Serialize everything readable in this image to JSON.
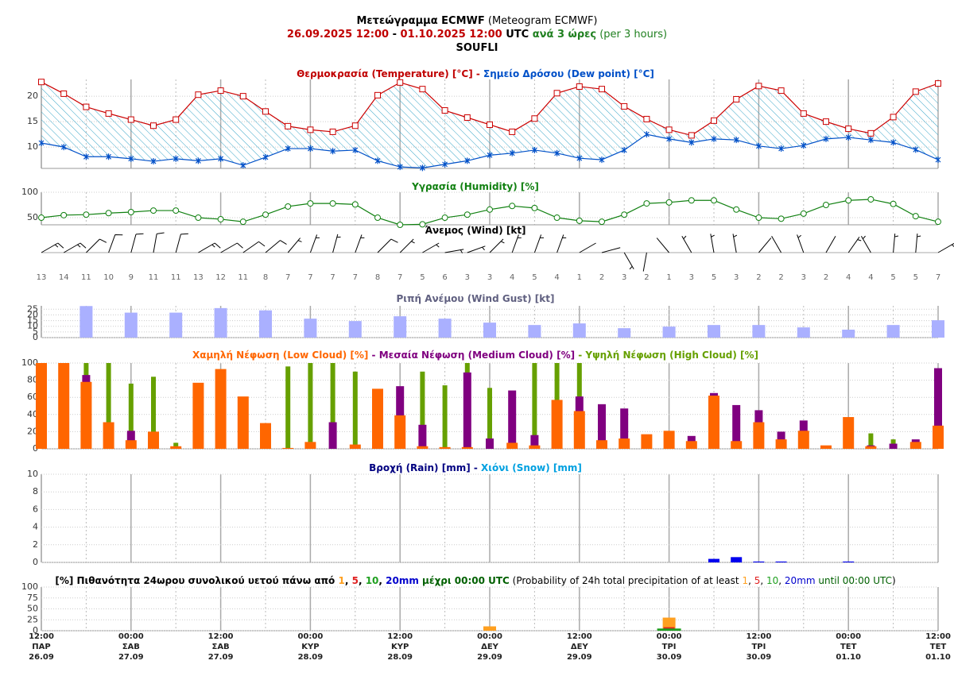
{
  "header": {
    "lines": [
      [
        {
          "text": "Μετεώγραμμα ECMWF",
          "color": "#000",
          "bold": true
        },
        {
          "text": " (Meteogram ECMWF)",
          "color": "#000",
          "bold": false
        }
      ],
      [
        {
          "text": "26.09.2025 12:00",
          "color": "#c00000",
          "bold": true
        },
        {
          "text": " - ",
          "color": "#000",
          "bold": true
        },
        {
          "text": "01.10.2025 12:00",
          "color": "#c00000",
          "bold": true
        },
        {
          "text": " UTC ",
          "color": "#000",
          "bold": true
        },
        {
          "text": "ανά 3 ώρες",
          "color": "#208020",
          "bold": true
        },
        {
          "text": " (per 3 hours)",
          "color": "#208020",
          "bold": false
        }
      ],
      [
        {
          "text": "SOUFLI",
          "color": "#000",
          "bold": true
        }
      ]
    ]
  },
  "time_axis": {
    "ticks": [
      {
        "time": "12:00",
        "day": "ΠΑΡ",
        "date": "26.09"
      },
      {
        "time": "00:00",
        "day": "ΣΑΒ",
        "date": "27.09"
      },
      {
        "time": "12:00",
        "day": "ΣΑΒ",
        "date": "27.09"
      },
      {
        "time": "00:00",
        "day": "ΚΥΡ",
        "date": "28.09"
      },
      {
        "time": "12:00",
        "day": "ΚΥΡ",
        "date": "28.09"
      },
      {
        "time": "00:00",
        "day": "ΔΕΥ",
        "date": "29.09"
      },
      {
        "time": "12:00",
        "day": "ΔΕΥ",
        "date": "29.09"
      },
      {
        "time": "00:00",
        "day": "ΤΡΙ",
        "date": "30.09"
      },
      {
        "time": "12:00",
        "day": "ΤΡΙ",
        "date": "30.09"
      },
      {
        "time": "00:00",
        "day": "ΤΕΤ",
        "date": "01.10"
      },
      {
        "time": "12:00",
        "day": "ΤΕΤ",
        "date": "01.10"
      }
    ]
  },
  "chart_data": [
    {
      "type": "line",
      "title_parts": [
        {
          "text": "Θερμοκρασία (Temperature) [°C]",
          "color": "#c00000",
          "bold": true
        },
        {
          "text": " - ",
          "color": "#c00000",
          "bold": true
        },
        {
          "text": "Σημείο Δρόσου (Dew point) [°C]",
          "color": "#0050c8",
          "bold": true
        }
      ],
      "ylim": [
        5.8,
        23.3
      ],
      "yticks": [
        10,
        15,
        20
      ],
      "fill_between": true,
      "hatch_color": "#3aa6c8",
      "series": [
        {
          "color": "#cc0000",
          "marker": "square",
          "values": [
            22.8,
            20.5,
            17.9,
            16.6,
            15.4,
            14.2,
            15.4,
            20.3,
            21.1,
            20.0,
            17.0,
            14.1,
            13.4,
            13.0,
            14.2,
            20.2,
            22.7,
            21.4,
            17.2,
            15.8,
            14.4,
            13.0,
            15.6,
            20.6,
            21.9,
            21.4,
            18.0,
            15.5,
            13.4,
            12.3,
            15.2,
            19.4,
            22.0,
            21.1,
            16.6,
            15.0,
            13.6,
            12.7,
            15.9,
            20.9,
            22.5
          ]
        },
        {
          "color": "#0050c8",
          "marker": "star",
          "values": [
            10.8,
            10,
            8.1,
            8.1,
            7.7,
            7.2,
            7.7,
            7.3,
            7.7,
            6.4,
            8,
            9.7,
            9.7,
            9.2,
            9.4,
            7.3,
            6.1,
            5.9,
            6.6,
            7.3,
            8.4,
            8.8,
            9.4,
            8.8,
            7.8,
            7.5,
            9.4,
            12.5,
            11.6,
            10.9,
            11.6,
            11.4,
            10.2,
            9.7,
            10.3,
            11.6,
            11.9,
            11.4,
            10.9,
            9.5,
            7.5
          ]
        }
      ]
    },
    {
      "type": "line",
      "title_parts": [
        {
          "text": "Υγρασία (Humidity) [%]",
          "color": "#108010",
          "bold": true
        }
      ],
      "ylim": [
        36,
        100
      ],
      "yticks": [
        50,
        100
      ],
      "series": [
        {
          "color": "#108010",
          "marker": "circle",
          "values": [
            50,
            55,
            56,
            59,
            61,
            64,
            64,
            50,
            47,
            42,
            56,
            72,
            78,
            78,
            76,
            50,
            36,
            37,
            50,
            56,
            66,
            73,
            69,
            50,
            44,
            42,
            56,
            78,
            80,
            84,
            84,
            66,
            50,
            48,
            58,
            75,
            84,
            86,
            77,
            53,
            42
          ]
        }
      ]
    },
    {
      "type": "wind_barb",
      "title_parts": [
        {
          "text": "Άνεμος (Wind) [kt]",
          "color": "#000",
          "bold": true
        }
      ],
      "color": "#000",
      "speeds": [
        13,
        14,
        11,
        10,
        9,
        11,
        11,
        13,
        12,
        11,
        8,
        7,
        7,
        7,
        7,
        8,
        7,
        5,
        6,
        3,
        3,
        4,
        5,
        4,
        1,
        2,
        3,
        2,
        1,
        3,
        5,
        3,
        2,
        2,
        3,
        2,
        4,
        4,
        5,
        5,
        7
      ],
      "directions": [
        60,
        60,
        45,
        20,
        15,
        10,
        15,
        60,
        60,
        55,
        50,
        40,
        20,
        15,
        20,
        45,
        45,
        60,
        80,
        70,
        45,
        20,
        20,
        20,
        60,
        75,
        150,
        190,
        320,
        330,
        350,
        350,
        40,
        330,
        340,
        30,
        35,
        330,
        5,
        5,
        60
      ]
    },
    {
      "type": "bar",
      "title_parts": [
        {
          "text": "Ριπή Ανέμου (Wind Gust) [kt]",
          "color": "#606080",
          "bold": true
        }
      ],
      "ylim": [
        0,
        28
      ],
      "yticks": [
        0,
        5,
        10,
        15,
        20,
        25
      ],
      "series": [
        {
          "color": "#aab0ff",
          "values": [
            null,
            null,
            27.8,
            null,
            22,
            null,
            22,
            null,
            26,
            null,
            24,
            null,
            16.7,
            null,
            14.6,
            null,
            18.8,
            null,
            16.7,
            null,
            13.2,
            null,
            11.1,
            null,
            12.5,
            null,
            8.3,
            null,
            9.7,
            null,
            11.1,
            null,
            11.1,
            null,
            9,
            null,
            7,
            null,
            11.1,
            null,
            15.3
          ]
        }
      ]
    },
    {
      "type": "bar",
      "title_parts": [
        {
          "text": "Χαμηλή Νέφωση (Low Cloud) [%]",
          "color": "#ff6600",
          "bold": true
        },
        {
          "text": " - ",
          "color": "#800080",
          "bold": true
        },
        {
          "text": "Μεσαία Νέφωση (Medium Cloud) [%]",
          "color": "#800080",
          "bold": true
        },
        {
          "text": " - ",
          "color": "#66a000",
          "bold": true
        },
        {
          "text": "Υψηλή Νέφωση (High Cloud) [%]",
          "color": "#66a000",
          "bold": true
        }
      ],
      "ylim": [
        0,
        100
      ],
      "yticks": [
        0,
        20,
        40,
        60,
        80,
        100
      ],
      "series": [
        {
          "color": "#ff6600",
          "values": [
            100,
            100,
            78,
            31,
            10,
            20,
            3,
            77,
            93,
            61,
            30,
            1,
            8,
            0,
            5,
            70,
            39,
            3,
            2,
            2,
            0,
            7,
            4,
            57,
            44,
            10,
            12,
            17,
            21,
            9,
            62,
            9,
            31,
            11,
            21,
            4,
            37,
            3,
            0,
            8,
            27
          ]
        },
        {
          "color": "#800080",
          "values": [
            0,
            0,
            86,
            0,
            21,
            0,
            0,
            0,
            0,
            0,
            0,
            0,
            0,
            31,
            0,
            0,
            73,
            28,
            0,
            89,
            12,
            68,
            16,
            0,
            61,
            52,
            47,
            0,
            0,
            15,
            65,
            51,
            45,
            20,
            33,
            0,
            0,
            4,
            6,
            11,
            94
          ]
        },
        {
          "color": "#66a000",
          "values": [
            0,
            0,
            100,
            100,
            76,
            84,
            7,
            0,
            0,
            0,
            0,
            96,
            100,
            100,
            90,
            0,
            0,
            90,
            74,
            100,
            71,
            0,
            100,
            100,
            100,
            0,
            0,
            0,
            0,
            0,
            0,
            0,
            0,
            0,
            0,
            0,
            0,
            18,
            11,
            0,
            0
          ]
        }
      ]
    },
    {
      "type": "bar",
      "title_parts": [
        {
          "text": "Βροχή (Rain) [mm]",
          "color": "#000080",
          "bold": true
        },
        {
          "text": " - ",
          "color": "#000080",
          "bold": true
        },
        {
          "text": "Χιόνι (Snow) [mm]",
          "color": "#00a0e0",
          "bold": true
        }
      ],
      "ylim": [
        0,
        10
      ],
      "yticks": [
        0,
        2,
        4,
        6,
        8,
        10
      ],
      "series": [
        {
          "color": "#0000ee",
          "values": [
            0,
            0,
            0,
            0,
            0,
            0,
            0,
            0,
            0,
            0,
            0,
            0,
            0,
            0,
            0,
            0,
            0,
            0,
            0,
            0,
            0,
            0,
            0,
            0,
            0,
            0,
            0,
            0,
            0,
            0,
            0.4,
            0.6,
            0.1,
            0.1,
            0,
            0,
            0.1,
            0,
            0,
            0,
            0
          ]
        },
        {
          "color": "#00a0e0",
          "values": [
            0,
            0,
            0,
            0,
            0,
            0,
            0,
            0,
            0,
            0,
            0,
            0,
            0,
            0,
            0,
            0,
            0,
            0,
            0,
            0,
            0,
            0,
            0,
            0,
            0,
            0,
            0,
            0,
            0,
            0,
            0,
            0,
            0,
            0,
            0,
            0,
            0,
            0,
            0,
            0,
            0
          ]
        }
      ]
    },
    {
      "type": "bar",
      "title_parts": [
        {
          "text": "[%] Πιθανότητα 24ωρου συνολικού υετού πάνω από ",
          "color": "#000",
          "bold": true
        },
        {
          "text": "1",
          "color": "#ffa020",
          "bold": true
        },
        {
          "text": ", ",
          "color": "#000",
          "bold": true
        },
        {
          "text": "5",
          "color": "#e02020",
          "bold": true
        },
        {
          "text": ", ",
          "color": "#000",
          "bold": true
        },
        {
          "text": "10",
          "color": "#20a020",
          "bold": true
        },
        {
          "text": ", ",
          "color": "#000",
          "bold": true
        },
        {
          "text": "20mm",
          "color": "#0000cc",
          "bold": true
        },
        {
          "text": " μέχρι 00:00 UTC",
          "color": "#006000",
          "bold": true
        },
        {
          "text": " (Probability of 24h total precipitation of at least ",
          "color": "#000",
          "bold": false
        },
        {
          "text": "1",
          "color": "#ffa020",
          "bold": false
        },
        {
          "text": ", ",
          "color": "#000",
          "bold": false
        },
        {
          "text": "5",
          "color": "#e02020",
          "bold": false
        },
        {
          "text": ", ",
          "color": "#000",
          "bold": false
        },
        {
          "text": "10",
          "color": "#20a020",
          "bold": false
        },
        {
          "text": ", ",
          "color": "#000",
          "bold": false
        },
        {
          "text": "20mm",
          "color": "#0000cc",
          "bold": false
        },
        {
          "text": " until 00:00 UTC",
          "color": "#006000",
          "bold": false
        },
        {
          "text": ")",
          "color": "#000",
          "bold": false
        }
      ],
      "ylim": [
        0,
        100
      ],
      "yticks": [
        0,
        25,
        50,
        75,
        100
      ],
      "series": [
        {
          "color": "#ffa020",
          "values": [
            null,
            null,
            null,
            null,
            0,
            null,
            null,
            null,
            null,
            null,
            null,
            null,
            0,
            null,
            null,
            null,
            null,
            null,
            null,
            null,
            10,
            null,
            null,
            null,
            null,
            null,
            null,
            null,
            30,
            null,
            null,
            null,
            null,
            null,
            null,
            null,
            0,
            null,
            null,
            null,
            null
          ]
        },
        {
          "color": "#e02020",
          "values": [
            null,
            null,
            null,
            null,
            0,
            null,
            null,
            null,
            null,
            null,
            null,
            null,
            0,
            null,
            null,
            null,
            null,
            null,
            null,
            null,
            0,
            null,
            null,
            null,
            null,
            null,
            null,
            null,
            8,
            null,
            null,
            null,
            null,
            null,
            null,
            null,
            0,
            null,
            null,
            null,
            null
          ]
        },
        {
          "color": "#20a020",
          "values": [
            null,
            null,
            null,
            null,
            0,
            null,
            null,
            null,
            null,
            null,
            null,
            null,
            0,
            null,
            null,
            null,
            null,
            null,
            null,
            null,
            0,
            null,
            null,
            null,
            null,
            null,
            null,
            null,
            5,
            null,
            null,
            null,
            null,
            null,
            null,
            null,
            0,
            null,
            null,
            null,
            null
          ]
        },
        {
          "color": "#0000cc",
          "values": [
            null,
            null,
            null,
            null,
            0,
            null,
            null,
            null,
            null,
            null,
            null,
            null,
            0,
            null,
            null,
            null,
            null,
            null,
            null,
            null,
            0,
            null,
            null,
            null,
            null,
            null,
            null,
            null,
            0,
            null,
            null,
            null,
            null,
            null,
            null,
            null,
            0,
            null,
            null,
            null,
            null
          ]
        }
      ]
    }
  ]
}
